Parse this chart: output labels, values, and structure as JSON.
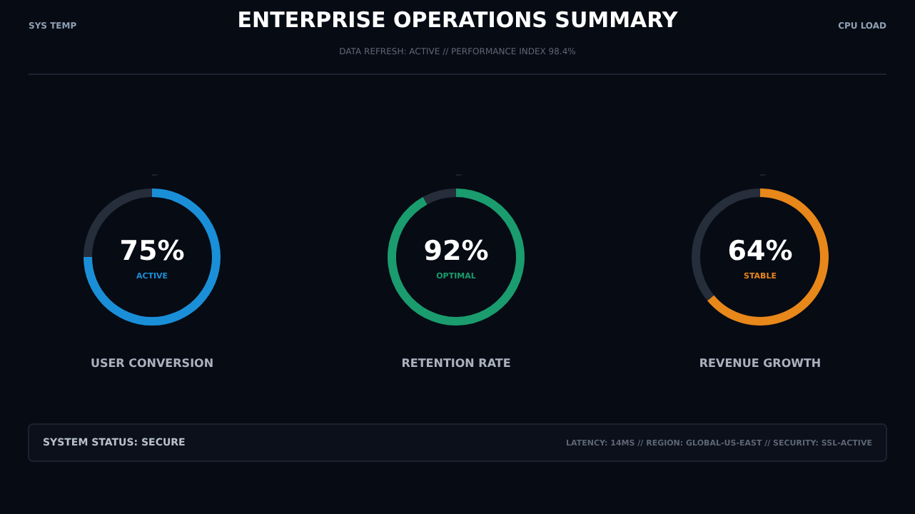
{
  "chart_data": [
    {
      "type": "other",
      "title": "ENTERPRISE OPERATIONS SUMMARY",
      "subtitle": "DATA REFRESH: ACTIVE // PERFORMANCE INDEX 98.4%",
      "annotations": [
        "SYS TEMP",
        "CPU LOAD",
        "SYSTEM STATUS: SECURE",
        "LATENCY: 14MS // REGION: GLOBAL-US-EAST // SECURITY: SSL-ACTIVE"
      ]
    },
    {
      "type": "donut",
      "title": "USER CONVERSION",
      "categories": [
        null,
        null
      ],
      "values": [
        75,
        25
      ],
      "colors": [
        "#1a8fd8",
        "#262d3b"
      ],
      "value_labels": [
        "75%",
        null
      ],
      "annotations": [
        "ACTIVE"
      ]
    },
    {
      "type": "donut",
      "title": "RETENTION RATE",
      "categories": [
        null,
        null
      ],
      "values": [
        92,
        8
      ],
      "colors": [
        "#1a9c6e",
        "#262d3b"
      ],
      "value_labels": [
        "92%",
        null
      ],
      "annotations": [
        "OPTIMAL"
      ]
    },
    {
      "type": "donut",
      "title": "REVENUE GROWTH",
      "categories": [
        null,
        null
      ],
      "values": [
        64,
        36
      ],
      "colors": [
        "#e8871a",
        "#262d3b"
      ],
      "value_labels": [
        "64%",
        null
      ],
      "annotations": [
        "STABLE"
      ]
    }
  ]
}
